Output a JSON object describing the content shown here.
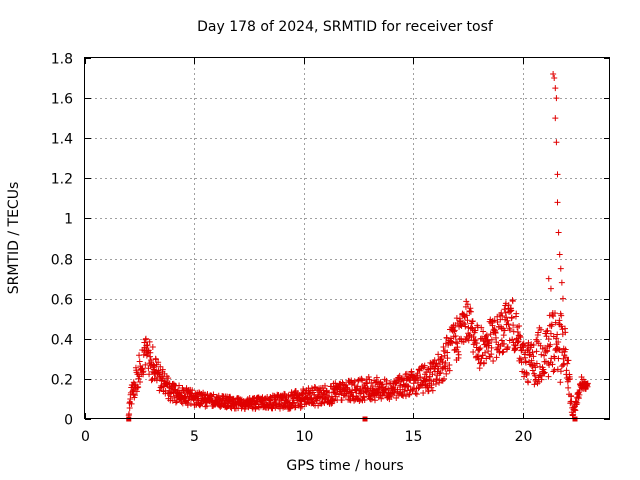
{
  "chart_data": {
    "type": "scatter",
    "title": "Day 178 of 2024, SRMTID for receiver tosf",
    "xlabel": "GPS time / hours",
    "ylabel": "SRMTID / TECUs",
    "xlim": [
      0,
      24
    ],
    "ylim": [
      0,
      1.8
    ],
    "xticks": [
      "0",
      "5",
      "10",
      "15",
      "20"
    ],
    "yticks": [
      "0",
      "0.2",
      "0.4",
      "0.6",
      "0.8",
      "1",
      "1.2",
      "1.4",
      "1.6",
      "1.8"
    ],
    "grid": true,
    "marker": "plus",
    "series": [
      {
        "name": "SRMTID",
        "color": "#e00000",
        "profile": [
          [
            2.0,
            0.02,
            0.02
          ],
          [
            2.1,
            0.12,
            0.06
          ],
          [
            2.4,
            0.22,
            0.08
          ],
          [
            2.8,
            0.33,
            0.08
          ],
          [
            3.2,
            0.25,
            0.1
          ],
          [
            3.6,
            0.18,
            0.06
          ],
          [
            4.0,
            0.13,
            0.05
          ],
          [
            5.0,
            0.1,
            0.04
          ],
          [
            6.0,
            0.09,
            0.03
          ],
          [
            7.0,
            0.08,
            0.03
          ],
          [
            8.0,
            0.08,
            0.03
          ],
          [
            9.0,
            0.09,
            0.04
          ],
          [
            10.0,
            0.1,
            0.05
          ],
          [
            11.0,
            0.12,
            0.05
          ],
          [
            12.0,
            0.14,
            0.05
          ],
          [
            13.0,
            0.15,
            0.06
          ],
          [
            14.0,
            0.15,
            0.05
          ],
          [
            15.0,
            0.18,
            0.06
          ],
          [
            16.0,
            0.22,
            0.08
          ],
          [
            17.0,
            0.4,
            0.12
          ],
          [
            17.5,
            0.5,
            0.1
          ],
          [
            18.0,
            0.35,
            0.1
          ],
          [
            19.0,
            0.42,
            0.12
          ],
          [
            19.5,
            0.5,
            0.12
          ],
          [
            20.0,
            0.3,
            0.1
          ],
          [
            20.5,
            0.28,
            0.12
          ],
          [
            21.0,
            0.35,
            0.15
          ],
          [
            21.5,
            0.4,
            0.2
          ],
          [
            22.0,
            0.3,
            0.15
          ],
          [
            22.3,
            0.02,
            0.02
          ],
          [
            22.7,
            0.18,
            0.03
          ],
          [
            23.0,
            0.17,
            0.02
          ]
        ],
        "spike": [
          [
            21.4,
            1.72
          ],
          [
            21.45,
            1.7
          ],
          [
            21.5,
            1.65
          ],
          [
            21.55,
            1.6
          ],
          [
            21.5,
            1.5
          ],
          [
            21.55,
            1.38
          ],
          [
            21.6,
            1.22
          ],
          [
            21.6,
            1.08
          ],
          [
            21.65,
            0.93
          ],
          [
            21.7,
            0.82
          ],
          [
            21.75,
            0.75
          ],
          [
            21.8,
            0.68
          ],
          [
            21.85,
            0.6
          ],
          [
            21.2,
            0.7
          ],
          [
            21.3,
            0.65
          ]
        ],
        "outliers": [
          [
            2.0,
            0.0
          ],
          [
            12.8,
            0.0
          ],
          [
            22.4,
            0.0
          ]
        ]
      }
    ]
  }
}
